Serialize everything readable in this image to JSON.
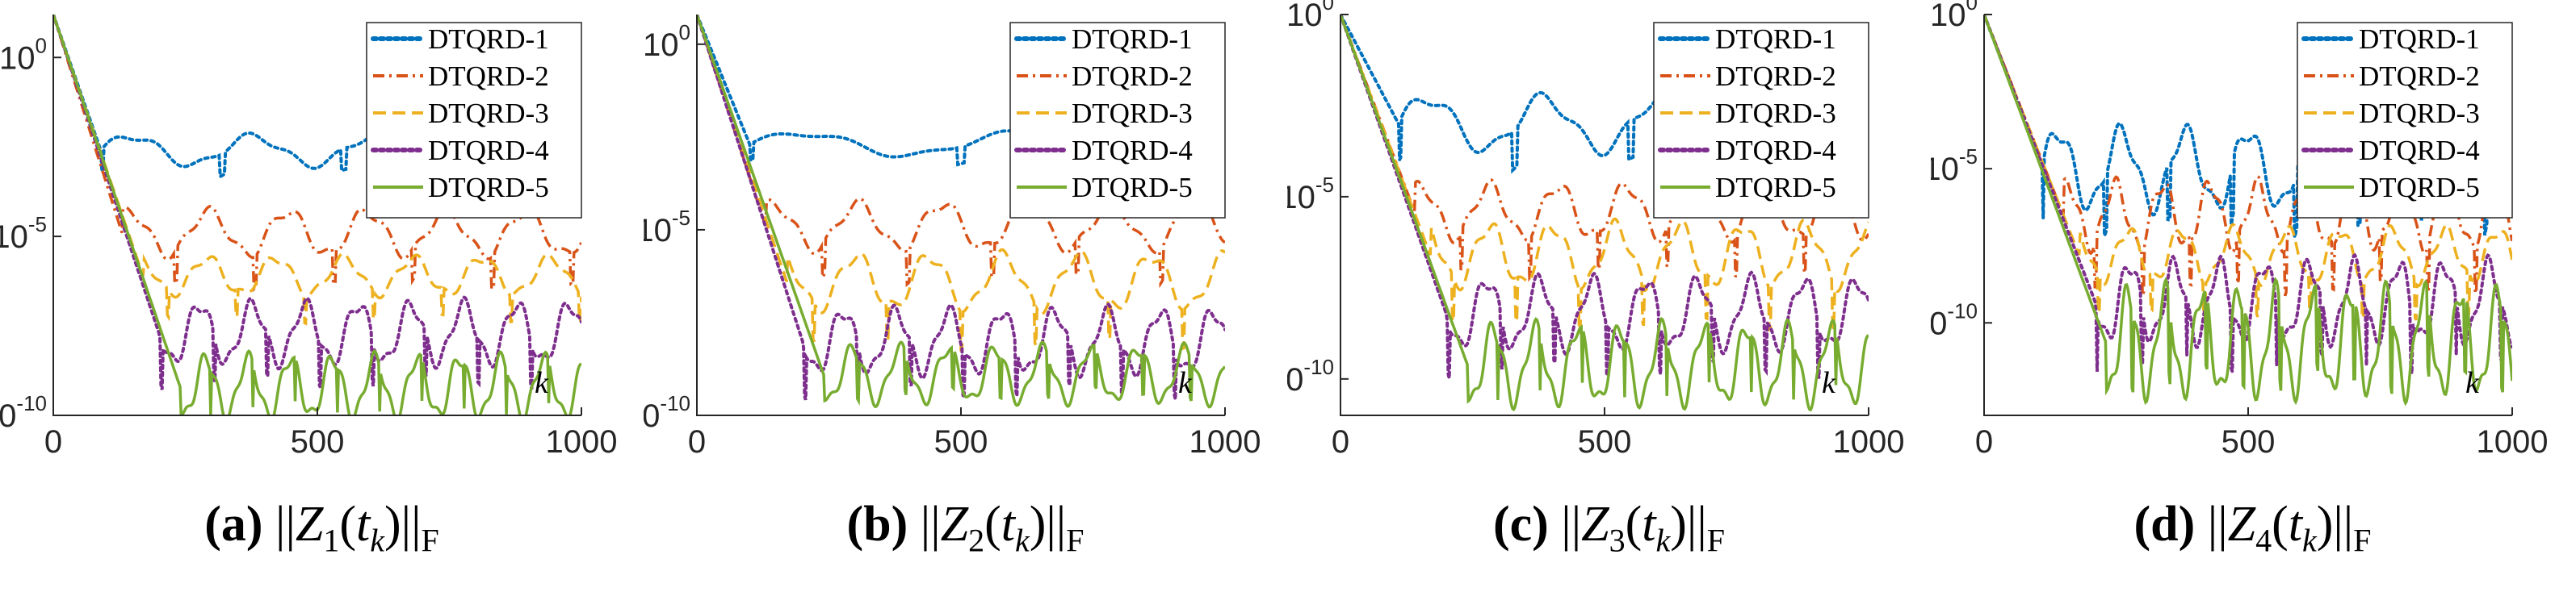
{
  "chart_data": [
    {
      "type": "line",
      "id": "a",
      "caption_label": "(a)",
      "caption_sym": "Z",
      "caption_index": "1",
      "caption_t": "t",
      "caption_k": "k",
      "caption_norm": "F",
      "xlabel": "k",
      "xlim": [
        0,
        1000
      ],
      "ylim_exp": [
        -10,
        1.2
      ],
      "xticks": [
        "0",
        "500",
        "1000"
      ],
      "yticks": [
        {
          "base": "10",
          "exp": "0",
          "v": 0
        },
        {
          "base": "10",
          "exp": "-5",
          "v": -5
        },
        {
          "base": "10",
          "exp": "-10",
          "v": -10
        }
      ],
      "legend_position": "top-right",
      "series": [
        {
          "name": "DTQRD-1",
          "color": "#0072BD",
          "style": "dotted",
          "floor": -2.6,
          "osc_amp": 0.4,
          "osc_period": 230,
          "break_k": 90
        },
        {
          "name": "DTQRD-2",
          "color": "#D95319",
          "style": "dashdot",
          "floor": -4.9,
          "osc_amp": 0.6,
          "osc_period": 150,
          "break_k": 130
        },
        {
          "name": "DTQRD-3",
          "color": "#EDB120",
          "style": "dashed",
          "floor": -6.1,
          "osc_amp": 0.5,
          "osc_period": 130,
          "break_k": 170
        },
        {
          "name": "DTQRD-4",
          "color": "#7E2F8E",
          "style": "dotted",
          "floor": -7.7,
          "osc_amp": 0.8,
          "osc_period": 100,
          "break_k": 200
        },
        {
          "name": "DTQRD-5",
          "color": "#77AC30",
          "style": "solid",
          "floor": -9.2,
          "osc_amp": 0.8,
          "osc_period": 80,
          "break_k": 240
        }
      ]
    },
    {
      "type": "line",
      "id": "b",
      "caption_label": "(b)",
      "caption_sym": "Z",
      "caption_index": "2",
      "caption_t": "t",
      "caption_k": "k",
      "caption_norm": "F",
      "xlabel": "k",
      "xlim": [
        0,
        1000
      ],
      "ylim_exp": [
        -10,
        0.8
      ],
      "xticks": [
        "0",
        "500",
        "1000"
      ],
      "yticks": [
        {
          "base": "10",
          "exp": "0",
          "v": 0
        },
        {
          "base": "10",
          "exp": "-5",
          "v": -5
        },
        {
          "base": "10",
          "exp": "-10",
          "v": -10
        }
      ],
      "legend_position": "top-right",
      "series": [
        {
          "name": "DTQRD-1",
          "color": "#0072BD",
          "style": "dotted",
          "floor": -2.7,
          "osc_amp": 0.3,
          "osc_period": 400,
          "break_k": 100
        },
        {
          "name": "DTQRD-2",
          "color": "#D95319",
          "style": "dashdot",
          "floor": -4.9,
          "osc_amp": 0.6,
          "osc_period": 160,
          "break_k": 130
        },
        {
          "name": "DTQRD-3",
          "color": "#EDB120",
          "style": "dashed",
          "floor": -6.4,
          "osc_amp": 0.7,
          "osc_period": 140,
          "break_k": 170
        },
        {
          "name": "DTQRD-4",
          "color": "#7E2F8E",
          "style": "dotted",
          "floor": -8.0,
          "osc_amp": 0.8,
          "osc_period": 100,
          "break_k": 200
        },
        {
          "name": "DTQRD-5",
          "color": "#77AC30",
          "style": "solid",
          "floor": -8.9,
          "osc_amp": 0.7,
          "osc_period": 90,
          "break_k": 240
        }
      ]
    },
    {
      "type": "line",
      "id": "c",
      "caption_label": "(c)",
      "caption_sym": "Z",
      "caption_index": "3",
      "caption_t": "t",
      "caption_k": "k",
      "caption_norm": "F",
      "xlabel": "k",
      "xlim": [
        0,
        1000
      ],
      "ylim_exp": [
        -11,
        0
      ],
      "xticks": [
        "0",
        "500",
        "1000"
      ],
      "yticks": [
        {
          "base": "10",
          "exp": "0",
          "v": 0
        },
        {
          "base": "10",
          "exp": "-5",
          "v": -5
        },
        {
          "base": "10",
          "exp": "-10",
          "v": -10
        }
      ],
      "legend_position": "top-right",
      "series": [
        {
          "name": "DTQRD-1",
          "color": "#0072BD",
          "style": "dotted",
          "floor": -3.0,
          "osc_amp": 0.7,
          "osc_period": 220,
          "break_k": 110
        },
        {
          "name": "DTQRD-2",
          "color": "#D95319",
          "style": "dashdot",
          "floor": -5.4,
          "osc_amp": 0.7,
          "osc_period": 130,
          "break_k": 140
        },
        {
          "name": "DTQRD-3",
          "color": "#EDB120",
          "style": "dashed",
          "floor": -6.6,
          "osc_amp": 0.8,
          "osc_period": 120,
          "break_k": 170
        },
        {
          "name": "DTQRD-4",
          "color": "#7E2F8E",
          "style": "dotted",
          "floor": -8.2,
          "osc_amp": 0.9,
          "osc_period": 100,
          "break_k": 200
        },
        {
          "name": "DTQRD-5",
          "color": "#77AC30",
          "style": "solid",
          "floor": -9.6,
          "osc_amp": 1.0,
          "osc_period": 80,
          "break_k": 240
        }
      ]
    },
    {
      "type": "line",
      "id": "d",
      "caption_label": "(d)",
      "caption_sym": "Z",
      "caption_index": "4",
      "caption_t": "t",
      "caption_k": "k",
      "caption_norm": "F",
      "xlabel": "k",
      "xlim": [
        0,
        1000
      ],
      "ylim_exp": [
        -13,
        0
      ],
      "xticks": [
        "0",
        "500",
        "1000"
      ],
      "yticks": [
        {
          "base": "10",
          "exp": "0",
          "v": 0
        },
        {
          "base": "10",
          "exp": "-5",
          "v": -5
        },
        {
          "base": "10",
          "exp": "-10",
          "v": -10
        }
      ],
      "legend_position": "top-right",
      "series": [
        {
          "name": "DTQRD-1",
          "color": "#0072BD",
          "style": "dotted",
          "floor": -5.0,
          "osc_amp": 1.2,
          "osc_period": 120,
          "break_k": 110
        },
        {
          "name": "DTQRD-2",
          "color": "#D95319",
          "style": "dashdot",
          "floor": -6.5,
          "osc_amp": 1.0,
          "osc_period": 90,
          "break_k": 150
        },
        {
          "name": "DTQRD-3",
          "color": "#EDB120",
          "style": "dashed",
          "floor": -7.8,
          "osc_amp": 0.8,
          "osc_period": 100,
          "break_k": 180
        },
        {
          "name": "DTQRD-4",
          "color": "#7E2F8E",
          "style": "dotted",
          "floor": -9.3,
          "osc_amp": 1.2,
          "osc_period": 85,
          "break_k": 210
        },
        {
          "name": "DTQRD-5",
          "color": "#77AC30",
          "style": "solid",
          "floor": -10.6,
          "osc_amp": 1.6,
          "osc_period": 70,
          "break_k": 230
        }
      ]
    }
  ]
}
